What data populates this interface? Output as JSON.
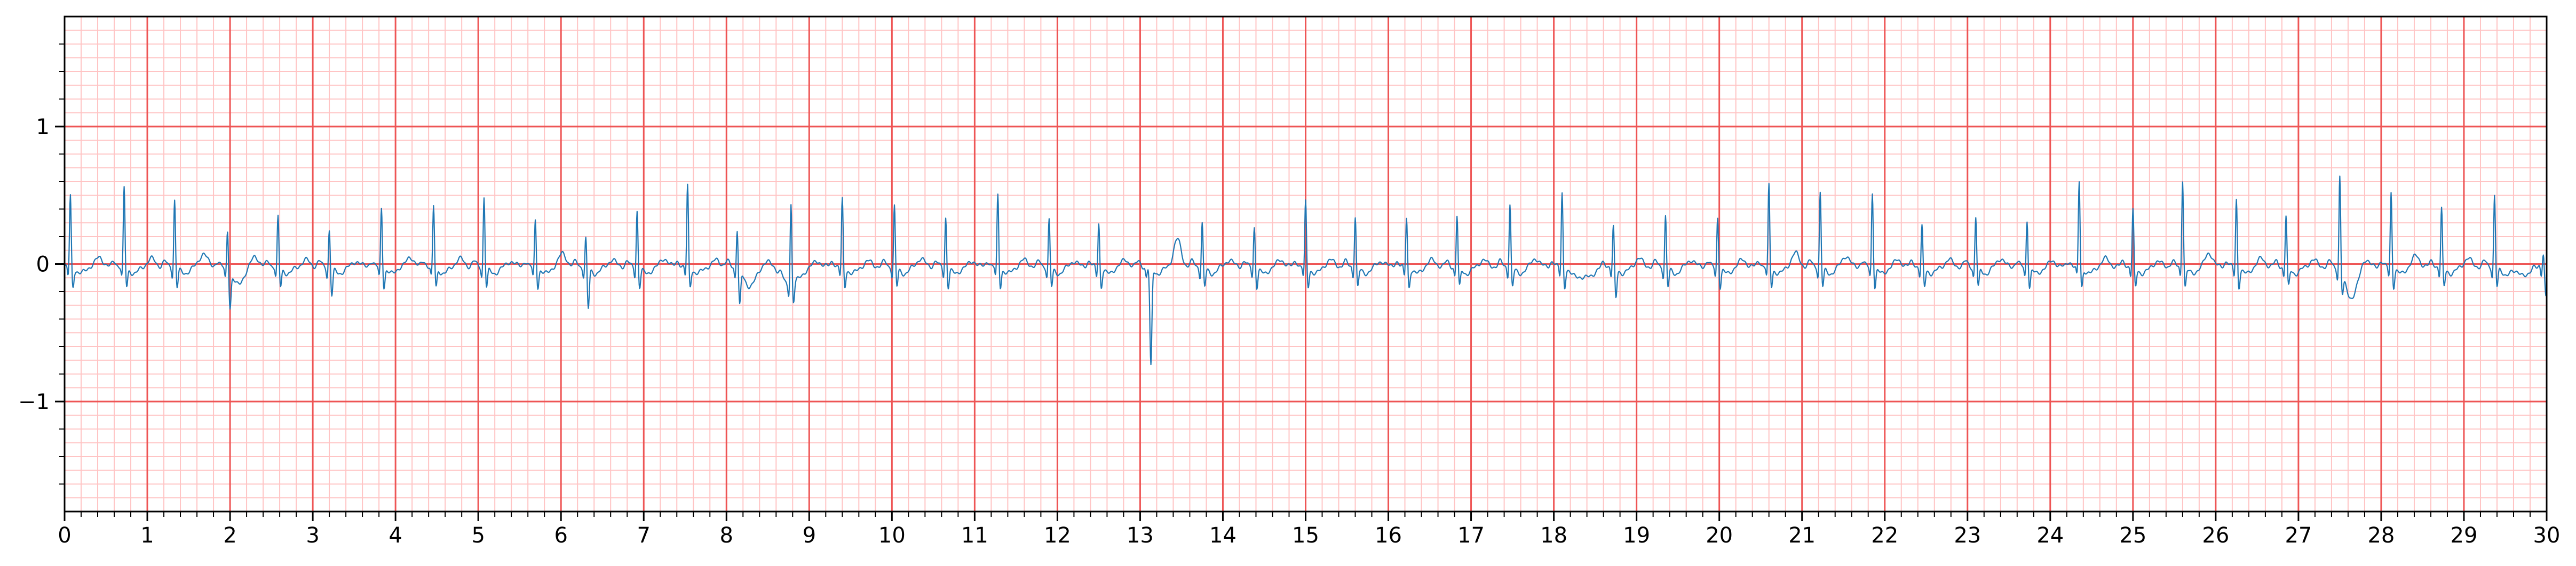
{
  "chart_data": {
    "type": "line",
    "title": "",
    "xlabel": "",
    "ylabel": "",
    "xlim": [
      0,
      30
    ],
    "ylim": [
      -1.8,
      1.8
    ],
    "x_major_ticks": [
      "0",
      "1",
      "2",
      "3",
      "4",
      "5",
      "6",
      "7",
      "8",
      "9",
      "10",
      "11",
      "12",
      "13",
      "14",
      "15",
      "16",
      "17",
      "18",
      "19",
      "20",
      "21",
      "22",
      "23",
      "24",
      "25",
      "26",
      "27",
      "28",
      "29",
      "30"
    ],
    "y_major_ticks": [
      {
        "value": -1,
        "label": "−1"
      },
      {
        "value": 0,
        "label": "0"
      },
      {
        "value": 1,
        "label": "1"
      }
    ],
    "grid": {
      "major": true,
      "minor": true,
      "major_step_x": 1,
      "minor_step_x": 0.2,
      "major_step_y": 1,
      "minor_step_y": 0.1
    },
    "colors": {
      "line": "#1f77b4",
      "major_grid": "#ee5555",
      "minor_grid": "#ffc4c4",
      "axes": "#000000"
    },
    "series": [
      {
        "sample_rate": 20,
        "beats": [
          {
            "t": 0.07,
            "r": 0.53
          },
          {
            "t": 0.72,
            "r": 0.58
          },
          {
            "t": 1.33,
            "r": 0.5
          },
          {
            "t": 1.97,
            "r": 0.3,
            "s": -0.25
          },
          {
            "t": 2.58,
            "r": 0.37
          },
          {
            "t": 3.2,
            "r": 0.28,
            "s": -0.2
          },
          {
            "t": 3.83,
            "r": 0.44
          },
          {
            "t": 4.46,
            "r": 0.45
          },
          {
            "t": 5.07,
            "r": 0.52
          },
          {
            "t": 5.69,
            "r": 0.35
          },
          {
            "t": 6.3,
            "r": 0.22,
            "s": -0.3
          },
          {
            "t": 6.92,
            "r": 0.42
          },
          {
            "t": 7.53,
            "r": 0.6
          },
          {
            "t": 8.13,
            "r": 0.3,
            "s": -0.25
          },
          {
            "t": 8.78,
            "r": 0.6
          },
          {
            "t": 9.4,
            "r": 0.5
          },
          {
            "t": 10.03,
            "r": 0.45
          },
          {
            "t": 10.65,
            "r": 0.37
          },
          {
            "t": 11.28,
            "r": 0.53
          },
          {
            "t": 11.9,
            "r": 0.35
          },
          {
            "t": 12.5,
            "r": 0.33
          },
          {
            "t": 13.1,
            "r": 0.0,
            "s": -0.72
          },
          {
            "t": 13.75,
            "r": 0.33
          },
          {
            "t": 14.38,
            "r": 0.3
          },
          {
            "t": 15.0,
            "r": 0.48
          },
          {
            "t": 15.6,
            "r": 0.38
          },
          {
            "t": 16.22,
            "r": 0.37
          },
          {
            "t": 16.83,
            "r": 0.38
          },
          {
            "t": 17.47,
            "r": 0.47
          },
          {
            "t": 18.1,
            "r": 0.55
          },
          {
            "t": 18.72,
            "r": 0.3,
            "s": -0.22
          },
          {
            "t": 19.35,
            "r": 0.38
          },
          {
            "t": 19.98,
            "r": 0.37
          },
          {
            "t": 20.6,
            "r": 0.6
          },
          {
            "t": 21.22,
            "r": 0.55
          },
          {
            "t": 21.85,
            "r": 0.55
          },
          {
            "t": 22.45,
            "r": 0.3
          },
          {
            "t": 23.1,
            "r": 0.37
          },
          {
            "t": 23.72,
            "r": 0.35
          },
          {
            "t": 24.35,
            "r": 0.63
          },
          {
            "t": 25.0,
            "r": 0.42
          },
          {
            "t": 25.6,
            "r": 0.65
          },
          {
            "t": 26.25,
            "r": 0.5
          },
          {
            "t": 26.85,
            "r": 0.38
          },
          {
            "t": 27.5,
            "r": 0.7
          },
          {
            "t": 28.12,
            "r": 0.55
          },
          {
            "t": 28.73,
            "r": 0.43
          },
          {
            "t": 29.37,
            "r": 0.53
          },
          {
            "t": 29.96,
            "r": 0.1,
            "s": -0.2
          }
        ],
        "t_waves": [
          {
            "t": 0.42,
            "h": 0.07
          },
          {
            "t": 1.05,
            "h": 0.06
          },
          {
            "t": 1.68,
            "h": 0.1
          },
          {
            "t": 2.3,
            "h": 0.08
          },
          {
            "t": 2.92,
            "h": 0.05
          },
          {
            "t": 3.53,
            "h": 0.04
          },
          {
            "t": 4.18,
            "h": 0.07
          },
          {
            "t": 4.78,
            "h": 0.06
          },
          {
            "t": 5.4,
            "h": 0.04
          },
          {
            "t": 6.02,
            "h": 0.1
          },
          {
            "t": 6.62,
            "h": 0.05
          },
          {
            "t": 7.25,
            "h": 0.06
          },
          {
            "t": 7.88,
            "h": 0.05
          },
          {
            "t": 8.48,
            "h": 0.05
          },
          {
            "t": 9.1,
            "h": 0.04
          },
          {
            "t": 9.72,
            "h": 0.04
          },
          {
            "t": 10.35,
            "h": 0.06
          },
          {
            "t": 10.98,
            "h": 0.04
          },
          {
            "t": 11.6,
            "h": 0.05
          },
          {
            "t": 12.2,
            "h": 0.04
          },
          {
            "t": 12.82,
            "h": 0.05
          },
          {
            "t": 13.45,
            "h": 0.2
          },
          {
            "t": 14.08,
            "h": 0.05
          },
          {
            "t": 14.7,
            "h": 0.05
          },
          {
            "t": 15.3,
            "h": 0.05
          },
          {
            "t": 15.92,
            "h": 0.04
          },
          {
            "t": 16.53,
            "h": 0.05
          },
          {
            "t": 17.15,
            "h": 0.05
          },
          {
            "t": 17.78,
            "h": 0.06
          },
          {
            "t": 18.42,
            "h": 0.05
          },
          {
            "t": 19.03,
            "h": 0.06
          },
          {
            "t": 19.66,
            "h": 0.05
          },
          {
            "t": 20.28,
            "h": 0.05
          },
          {
            "t": 20.92,
            "h": 0.1
          },
          {
            "t": 21.53,
            "h": 0.08
          },
          {
            "t": 22.16,
            "h": 0.05
          },
          {
            "t": 22.78,
            "h": 0.05
          },
          {
            "t": 23.4,
            "h": 0.06
          },
          {
            "t": 24.03,
            "h": 0.04
          },
          {
            "t": 24.67,
            "h": 0.06
          },
          {
            "t": 25.3,
            "h": 0.04
          },
          {
            "t": 25.92,
            "h": 0.1
          },
          {
            "t": 26.55,
            "h": 0.06
          },
          {
            "t": 27.18,
            "h": 0.05
          },
          {
            "t": 27.8,
            "h": 0.08
          },
          {
            "t": 28.42,
            "h": 0.08
          },
          {
            "t": 29.05,
            "h": 0.06
          },
          {
            "t": 29.68,
            "h": 0.08
          }
        ],
        "baseline_dips": [
          {
            "t": 2.1,
            "d": -0.08
          },
          {
            "t": 8.3,
            "d": -0.1
          },
          {
            "t": 8.75,
            "d": -0.14
          },
          {
            "t": 18.4,
            "d": -0.12
          },
          {
            "t": 27.65,
            "d": -0.18
          },
          {
            "t": 29.7,
            "d": -0.12
          }
        ]
      }
    ]
  }
}
